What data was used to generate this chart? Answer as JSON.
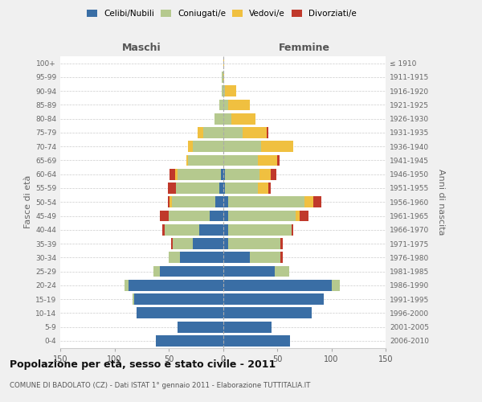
{
  "age_groups": [
    "0-4",
    "5-9",
    "10-14",
    "15-19",
    "20-24",
    "25-29",
    "30-34",
    "35-39",
    "40-44",
    "45-49",
    "50-54",
    "55-59",
    "60-64",
    "65-69",
    "70-74",
    "75-79",
    "80-84",
    "85-89",
    "90-94",
    "95-99",
    "100+"
  ],
  "birth_years": [
    "2006-2010",
    "2001-2005",
    "1996-2000",
    "1991-1995",
    "1986-1990",
    "1981-1985",
    "1976-1980",
    "1971-1975",
    "1966-1970",
    "1961-1965",
    "1956-1960",
    "1951-1955",
    "1946-1950",
    "1941-1945",
    "1936-1940",
    "1931-1935",
    "1926-1930",
    "1921-1925",
    "1916-1920",
    "1911-1915",
    "≤ 1910"
  ],
  "males_celibi": [
    62,
    42,
    80,
    82,
    87,
    58,
    40,
    28,
    22,
    12,
    7,
    3,
    2,
    0,
    0,
    0,
    0,
    0,
    0,
    0,
    0
  ],
  "males_coniugati": [
    0,
    0,
    0,
    1,
    4,
    6,
    10,
    18,
    32,
    38,
    40,
    40,
    40,
    32,
    28,
    18,
    8,
    3,
    1,
    1,
    0
  ],
  "males_vedovi": [
    0,
    0,
    0,
    0,
    0,
    0,
    0,
    0,
    0,
    0,
    2,
    0,
    2,
    2,
    4,
    5,
    0,
    0,
    0,
    0,
    0
  ],
  "males_divorziati": [
    0,
    0,
    0,
    0,
    0,
    0,
    0,
    2,
    2,
    8,
    2,
    8,
    5,
    0,
    0,
    0,
    0,
    0,
    0,
    0,
    0
  ],
  "females_nubili": [
    62,
    45,
    82,
    93,
    100,
    48,
    25,
    5,
    5,
    5,
    5,
    2,
    2,
    0,
    0,
    0,
    0,
    0,
    0,
    0,
    0
  ],
  "females_coniugate": [
    0,
    0,
    0,
    0,
    8,
    13,
    28,
    48,
    58,
    62,
    70,
    30,
    32,
    32,
    35,
    18,
    8,
    5,
    2,
    0,
    0
  ],
  "females_vedove": [
    0,
    0,
    0,
    0,
    0,
    0,
    0,
    0,
    0,
    4,
    8,
    10,
    10,
    18,
    30,
    22,
    22,
    20,
    10,
    1,
    1
  ],
  "females_divorziate": [
    0,
    0,
    0,
    0,
    0,
    0,
    2,
    2,
    2,
    8,
    8,
    2,
    5,
    2,
    0,
    2,
    0,
    0,
    0,
    0,
    0
  ],
  "color_celibi": "#3a6ea5",
  "color_coniugati": "#b5c98e",
  "color_vedovi": "#f0c040",
  "color_divorziati": "#c0392b",
  "xlim": 150,
  "title": "Popolazione per età, sesso e stato civile - 2011",
  "subtitle": "COMUNE DI BADOLATO (CZ) - Dati ISTAT 1° gennaio 2011 - Elaborazione TUTTITALIA.IT",
  "ylabel_left": "Fasce di età",
  "ylabel_right": "Anni di nascita",
  "label_maschi": "Maschi",
  "label_femmine": "Femmine",
  "legend_labels": [
    "Celibi/Nubili",
    "Coniugati/e",
    "Vedovi/e",
    "Divorziati/e"
  ],
  "background_color": "#f0f0f0",
  "plot_background": "#ffffff"
}
